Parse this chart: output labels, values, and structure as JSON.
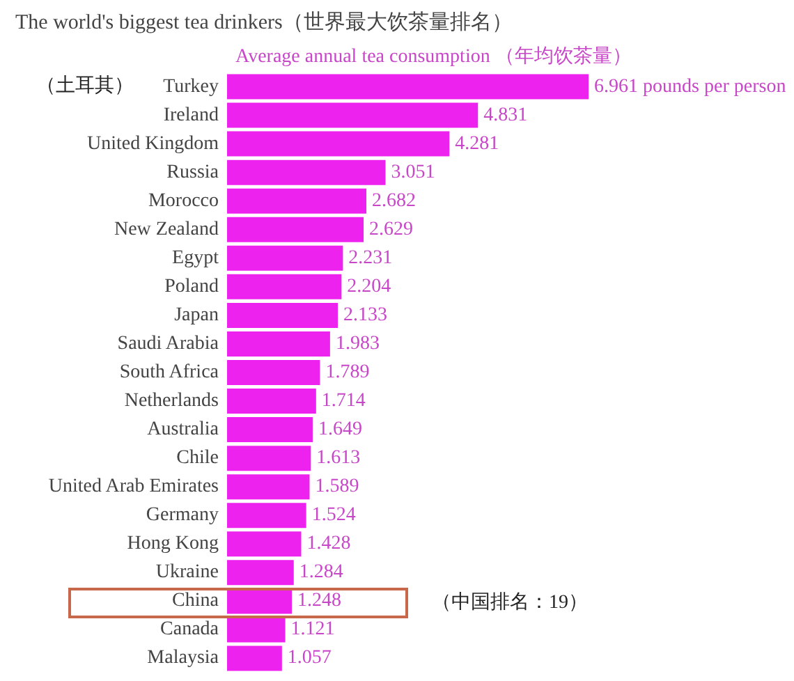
{
  "chart_data": {
    "type": "bar",
    "orientation": "horizontal",
    "title": "The world's biggest tea drinkers（世界最大饮茶量排名）",
    "subtitle": "Average annual tea consumption （年均饮茶量）",
    "categories": [
      "Turkey",
      "Ireland",
      "United Kingdom",
      "Russia",
      "Morocco",
      "New Zealand",
      "Egypt",
      "Poland",
      "Japan",
      "Saudi Arabia",
      "South Africa",
      "Netherlands",
      "Australia",
      "Chile",
      "United Arab Emirates",
      "Germany",
      "Hong Kong",
      "Ukraine",
      "China",
      "Canada",
      "Malaysia"
    ],
    "values": [
      6.961,
      4.831,
      4.281,
      3.051,
      2.682,
      2.629,
      2.231,
      2.204,
      2.133,
      1.983,
      1.789,
      1.714,
      1.649,
      1.613,
      1.589,
      1.524,
      1.428,
      1.284,
      1.248,
      1.121,
      1.057
    ],
    "value_labels": [
      "6.961 pounds per person",
      "4.831",
      "4.281",
      "3.051",
      "2.682",
      "2.629",
      "2.231",
      "2.204",
      "2.133",
      "1.983",
      "1.789",
      "1.714",
      "1.649",
      "1.613",
      "1.589",
      "1.524",
      "1.428",
      "1.284",
      "1.248",
      "1.121",
      "1.057"
    ],
    "color": "#ee22ee",
    "tick_labels": "y",
    "annotations": [
      "（土耳其）",
      "（中国排名：19）"
    ]
  }
}
